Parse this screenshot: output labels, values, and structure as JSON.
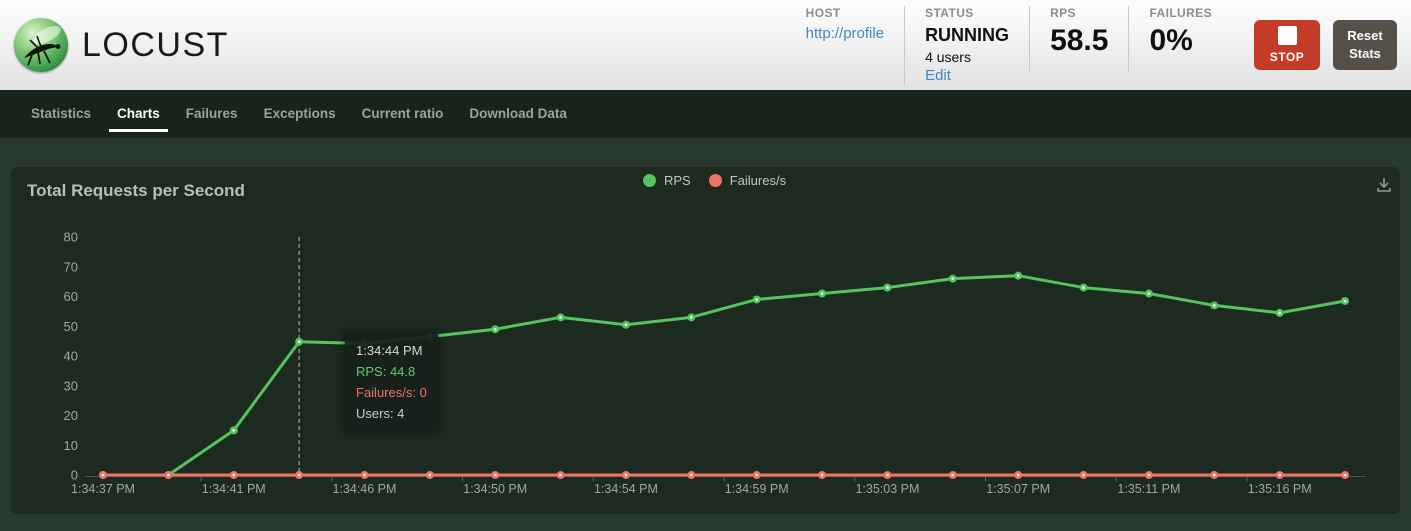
{
  "header": {
    "logo_text": "LOCUST",
    "host": {
      "label": "HOST",
      "value": "http://profile"
    },
    "status": {
      "label": "STATUS",
      "value": "RUNNING",
      "users": "4 users",
      "edit_link": "Edit"
    },
    "rps": {
      "label": "RPS",
      "value": "58.5"
    },
    "failures": {
      "label": "FAILURES",
      "value": "0%"
    },
    "stop_button": "STOP",
    "reset_button": "Reset Stats"
  },
  "nav": {
    "tabs": [
      {
        "label": "Statistics",
        "active": false
      },
      {
        "label": "Charts",
        "active": true
      },
      {
        "label": "Failures",
        "active": false
      },
      {
        "label": "Exceptions",
        "active": false
      },
      {
        "label": "Current ratio",
        "active": false
      },
      {
        "label": "Download Data",
        "active": false
      }
    ]
  },
  "icons": {
    "logo": "locust-insect-icon",
    "stop": "stop-square-icon",
    "download": "download-icon"
  },
  "chart_data": {
    "type": "line",
    "title": "Total Requests per Second",
    "legend_position": "top-center",
    "grid": false,
    "ylim": [
      0,
      80
    ],
    "ylabel": "",
    "xlabel": "",
    "y_ticks": [
      0,
      10,
      20,
      30,
      40,
      50,
      60,
      70,
      80
    ],
    "x_tick_labels": [
      "1:34:37 PM",
      "1:34:41 PM",
      "1:34:46 PM",
      "1:34:50 PM",
      "1:34:54 PM",
      "1:34:59 PM",
      "1:35:03 PM",
      "1:35:07 PM",
      "1:35:11 PM",
      "1:35:16 PM"
    ],
    "x_tick_indexes": [
      0,
      2,
      4,
      6,
      8,
      10,
      12,
      14,
      16,
      18
    ],
    "series": [
      {
        "name": "RPS",
        "color": "#54c45e",
        "values": [
          0,
          0,
          15,
          44.8,
          44.2,
          46.5,
          49,
          53,
          50.5,
          53,
          59,
          61,
          63,
          66,
          67,
          63,
          61,
          57,
          54.5,
          58.5
        ]
      },
      {
        "name": "Failures/s",
        "color": "#ee7266",
        "values": [
          0,
          0,
          0,
          0,
          0,
          0,
          0,
          0,
          0,
          0,
          0,
          0,
          0,
          0,
          0,
          0,
          0,
          0,
          0,
          0
        ]
      }
    ],
    "tooltip": {
      "point_index": 3,
      "time": "1:34:44 PM",
      "rps": "RPS: 44.8",
      "failures": "Failures/s: 0",
      "users": "Users: 4"
    }
  }
}
